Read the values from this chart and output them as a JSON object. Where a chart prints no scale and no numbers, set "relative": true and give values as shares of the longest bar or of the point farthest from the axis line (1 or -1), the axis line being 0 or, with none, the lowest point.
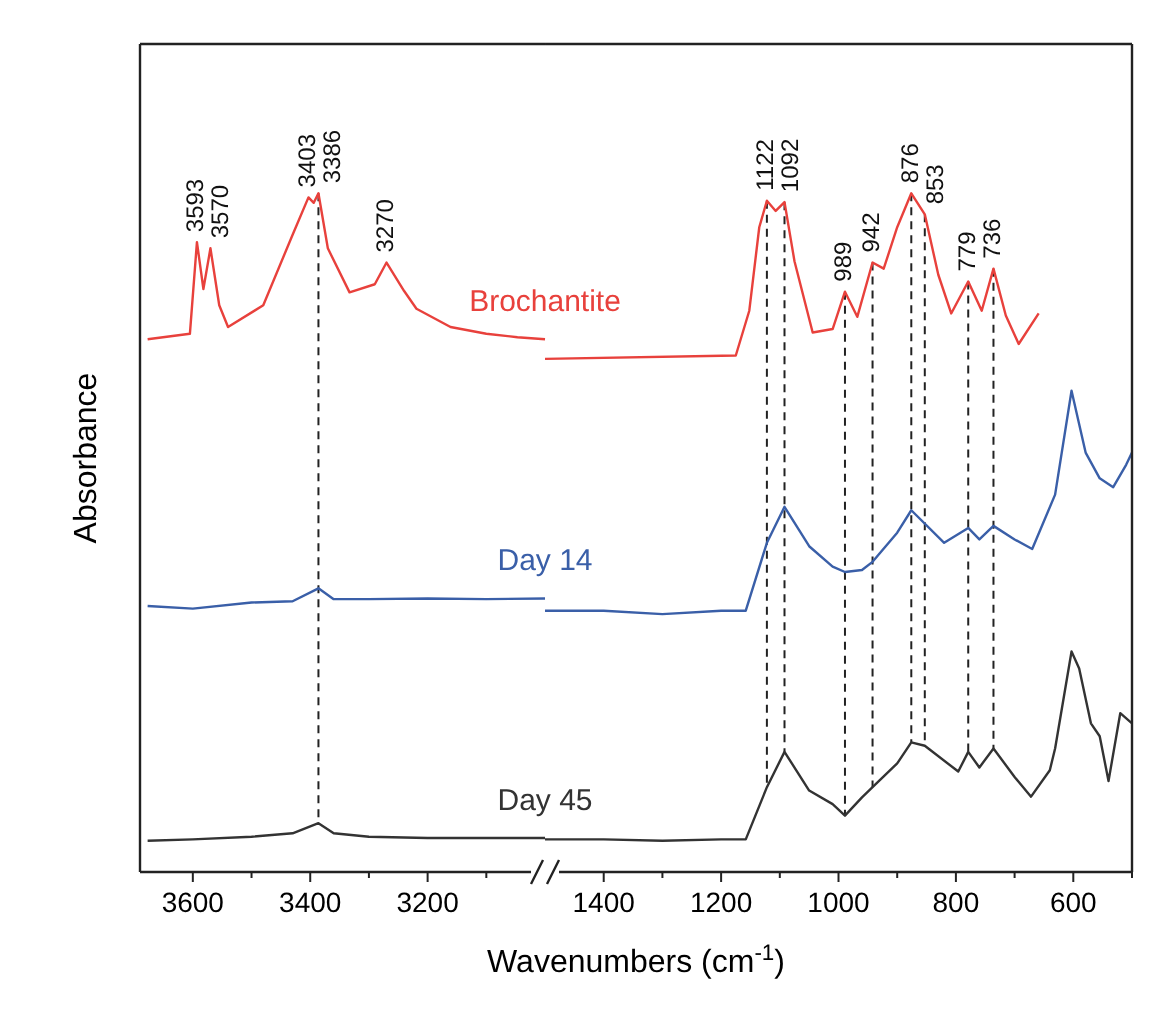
{
  "chart_data": [
    {
      "type": "line",
      "relative": true,
      "ylabel": "Absorbance",
      "xlim": [
        3690,
        3000
      ],
      "xticks": [
        3600,
        {
          "value": 3500,
          "label": null
        },
        3400,
        {
          "value": 3300,
          "label": null
        },
        3200,
        {
          "value": 3100,
          "label": null
        }
      ],
      "series": [
        {
          "name": "Brochantite",
          "color": "#e8413c",
          "x": [
            3677,
            3605,
            3593,
            3582,
            3570,
            3555,
            3540,
            3480,
            3430,
            3403,
            3394,
            3386,
            3370,
            3333,
            3290,
            3270,
            3240,
            3219,
            3161,
            3100,
            3047,
            3000
          ],
          "values": [
            0.785,
            0.793,
            0.928,
            0.859,
            0.919,
            0.835,
            0.803,
            0.835,
            0.939,
            0.994,
            0.986,
            1,
            0.919,
            0.854,
            0.866,
            0.898,
            0.856,
            0.83,
            0.803,
            0.793,
            0.788,
            0.785
          ]
        },
        {
          "name": "Day 14",
          "color": "#3a5fa8",
          "x": [
            3677,
            3600,
            3500,
            3430,
            3386,
            3360,
            3300,
            3200,
            3100,
            3000
          ],
          "values": [
            0.392,
            0.388,
            0.397,
            0.399,
            0.418,
            0.402,
            0.402,
            0.403,
            0.402,
            0.403
          ]
        },
        {
          "name": "Day 45",
          "color": "#333333",
          "x": [
            3677,
            3600,
            3500,
            3430,
            3386,
            3360,
            3300,
            3200,
            3100,
            3000
          ],
          "values": [
            0.046,
            0.048,
            0.052,
            0.057,
            0.072,
            0.057,
            0.052,
            0.05,
            0.05,
            0.05
          ]
        }
      ],
      "ref_lines": [
        {
          "axis": "x",
          "value": 3386,
          "line_style": "dashed",
          "color": "#222222"
        }
      ],
      "annotations": [
        {
          "text": "3593",
          "x": 3593,
          "y": 0.928
        },
        {
          "text": "3570",
          "x": 3570,
          "y": 0.919
        },
        {
          "text": "3403",
          "x": 3403,
          "y": 0.994
        },
        {
          "text": "3386",
          "x": 3386,
          "y": 1
        },
        {
          "text": "3270",
          "x": 3270,
          "y": 0.898
        }
      ]
    },
    {
      "type": "line",
      "relative": true,
      "xlabel": "Wavenumbers (cm$^{-1}$)",
      "xlim": [
        1500,
        500
      ],
      "xticks": [
        1400,
        {
          "value": 1300,
          "label": null
        },
        1200,
        {
          "value": 1100,
          "label": null
        },
        1000,
        {
          "value": 900,
          "label": null
        },
        800,
        {
          "value": 700,
          "label": null
        },
        600,
        {
          "value": 500,
          "label": null
        }
      ],
      "series": [
        {
          "color": "#e8413c",
          "x": [
            1500,
            1175,
            1152,
            1135,
            1122,
            1107,
            1092,
            1075,
            1044,
            1010,
            989,
            968,
            942,
            923,
            900,
            876,
            853,
            830,
            808,
            779,
            756,
            736,
            715,
            693,
            659
          ],
          "values": [
            0.756,
            0.761,
            0.827,
            0.95,
            0.989,
            0.974,
            0.987,
            0.9,
            0.795,
            0.8,
            0.855,
            0.818,
            0.898,
            0.889,
            0.95,
            1,
            0.969,
            0.88,
            0.823,
            0.87,
            0.827,
            0.889,
            0.82,
            0.778,
            0.823
          ]
        },
        {
          "color": "#3a5fa8",
          "x": [
            1500,
            1400,
            1300,
            1200,
            1158,
            1122,
            1092,
            1050,
            1010,
            989,
            960,
            942,
            900,
            876,
            820,
            779,
            760,
            736,
            700,
            670,
            631,
            603,
            579,
            555,
            532,
            510,
            500
          ],
          "values": [
            0.385,
            0.385,
            0.38,
            0.385,
            0.385,
            0.485,
            0.538,
            0.48,
            0.45,
            0.442,
            0.445,
            0.457,
            0.5,
            0.533,
            0.485,
            0.507,
            0.49,
            0.51,
            0.49,
            0.476,
            0.556,
            0.709,
            0.618,
            0.58,
            0.567,
            0.6,
            0.618
          ]
        },
        {
          "color": "#333333",
          "x": [
            1500,
            1400,
            1300,
            1200,
            1158,
            1122,
            1092,
            1050,
            1010,
            989,
            960,
            942,
            900,
            876,
            853,
            796,
            779,
            760,
            736,
            700,
            672,
            640,
            631,
            603,
            590,
            570,
            555,
            540,
            520,
            500
          ],
          "values": [
            0.048,
            0.048,
            0.046,
            0.048,
            0.048,
            0.125,
            0.177,
            0.12,
            0.1,
            0.083,
            0.11,
            0.125,
            0.16,
            0.191,
            0.186,
            0.148,
            0.177,
            0.154,
            0.182,
            0.14,
            0.111,
            0.15,
            0.182,
            0.325,
            0.3,
            0.219,
            0.2,
            0.134,
            0.234,
            0.219
          ]
        }
      ],
      "ref_lines": [
        {
          "axis": "x",
          "value": 1122,
          "line_style": "dashed",
          "color": "#222222"
        },
        {
          "axis": "x",
          "value": 1092,
          "line_style": "dashed",
          "color": "#222222"
        },
        {
          "axis": "x",
          "value": 989,
          "line_style": "dashed",
          "color": "#222222"
        },
        {
          "axis": "x",
          "value": 942,
          "line_style": "dashed",
          "color": "#222222"
        },
        {
          "axis": "x",
          "value": 876,
          "line_style": "dashed",
          "color": "#222222"
        },
        {
          "axis": "x",
          "value": 853,
          "line_style": "dashed",
          "color": "#222222"
        },
        {
          "axis": "x",
          "value": 779,
          "line_style": "dashed",
          "color": "#222222"
        },
        {
          "axis": "x",
          "value": 736,
          "line_style": "dashed",
          "color": "#222222"
        }
      ],
      "annotations": [
        {
          "text": "1122",
          "x": 1122,
          "y": 0.989
        },
        {
          "text": "1092",
          "x": 1092,
          "y": 0.987
        },
        {
          "text": "989",
          "x": 989,
          "y": 0.855
        },
        {
          "text": "942",
          "x": 942,
          "y": 0.898
        },
        {
          "text": "876",
          "x": 876,
          "y": 1
        },
        {
          "text": "853",
          "x": 853,
          "y": 0.969
        },
        {
          "text": "779",
          "x": 779,
          "y": 0.87
        },
        {
          "text": "736",
          "x": 736,
          "y": 0.889
        }
      ]
    }
  ]
}
